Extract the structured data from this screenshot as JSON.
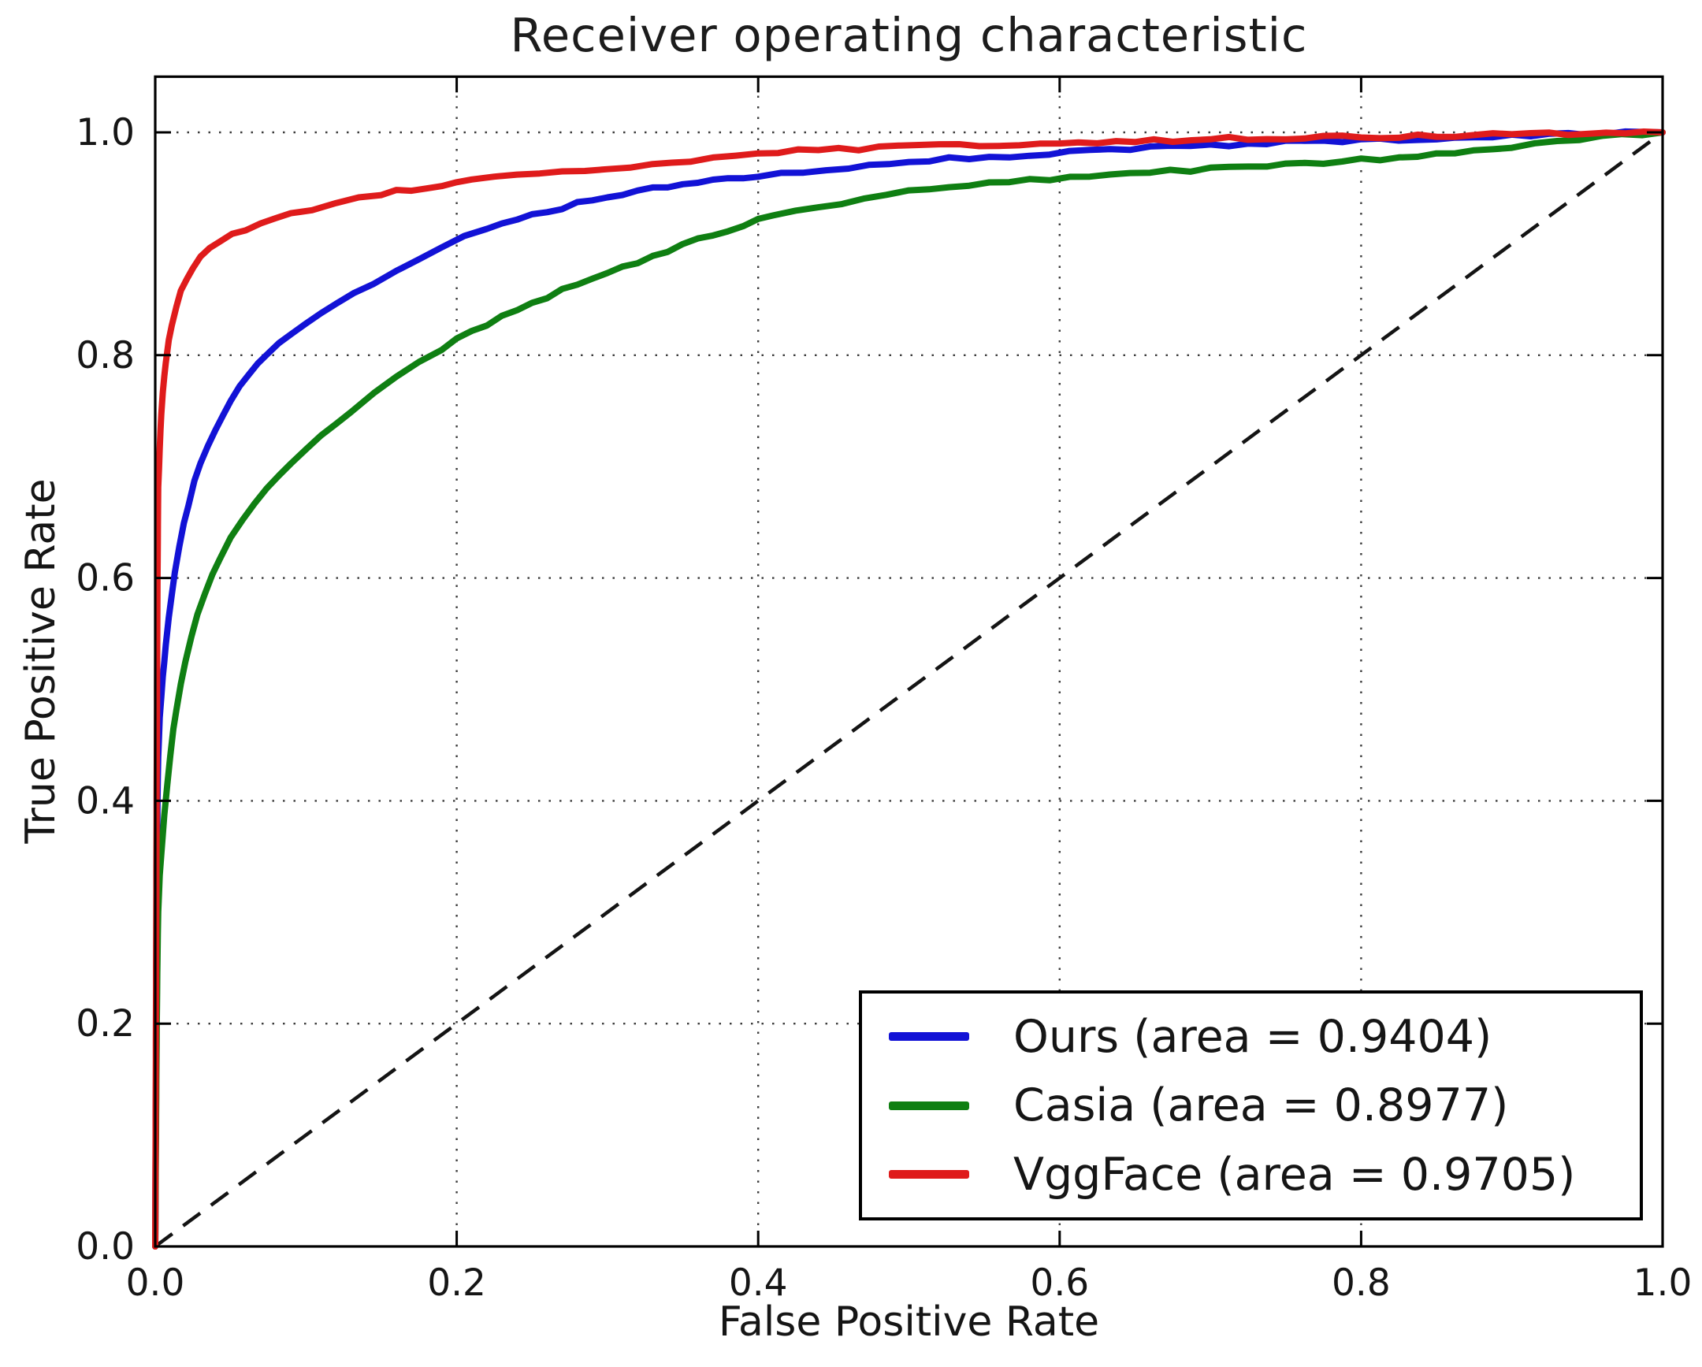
{
  "chart_data": {
    "type": "line",
    "title": "Receiver operating characteristic",
    "xlabel": "False Positive Rate",
    "ylabel": "True Positive Rate",
    "xlim": [
      0.0,
      1.0
    ],
    "ylim": [
      0.0,
      1.05
    ],
    "grid": "dotted",
    "grid_color": "#3c3c3c",
    "axis_color": "#000000",
    "background": "#ffffff",
    "legend_position": "lower right",
    "xticks": [
      {
        "v": 0.0,
        "label": "0.0"
      },
      {
        "v": 0.2,
        "label": "0.2"
      },
      {
        "v": 0.4,
        "label": "0.4"
      },
      {
        "v": 0.6,
        "label": "0.6"
      },
      {
        "v": 0.8,
        "label": "0.8"
      },
      {
        "v": 1.0,
        "label": "1.0"
      }
    ],
    "yticks": [
      {
        "v": 0.0,
        "label": "0.0"
      },
      {
        "v": 0.2,
        "label": "0.2"
      },
      {
        "v": 0.4,
        "label": "0.4"
      },
      {
        "v": 0.6,
        "label": "0.6"
      },
      {
        "v": 0.8,
        "label": "0.8"
      },
      {
        "v": 1.0,
        "label": "1.0"
      }
    ],
    "reference_line": {
      "style": "dashed",
      "color": "#141414",
      "from": [
        0,
        0
      ],
      "to": [
        1,
        1
      ]
    },
    "series": [
      {
        "name": "Ours",
        "label": "Ours (area = 0.9404)",
        "auc": 0.9404,
        "color": "#1212d6",
        "points": [
          [
            0,
            0
          ],
          [
            0.001,
            0.3
          ],
          [
            0.0015,
            0.4
          ],
          [
            0.002,
            0.44
          ],
          [
            0.003,
            0.476
          ],
          [
            0.005,
            0.511
          ],
          [
            0.007,
            0.541
          ],
          [
            0.009,
            0.566
          ],
          [
            0.011,
            0.586
          ],
          [
            0.013,
            0.606
          ],
          [
            0.016,
            0.629
          ],
          [
            0.019,
            0.648
          ],
          [
            0.022,
            0.666
          ],
          [
            0.026,
            0.686
          ],
          [
            0.03,
            0.702
          ],
          [
            0.035,
            0.719
          ],
          [
            0.04,
            0.733
          ],
          [
            0.045,
            0.746
          ],
          [
            0.05,
            0.758
          ],
          [
            0.056,
            0.772
          ],
          [
            0.062,
            0.782
          ],
          [
            0.068,
            0.792
          ],
          [
            0.075,
            0.801
          ],
          [
            0.082,
            0.81
          ],
          [
            0.09,
            0.818
          ],
          [
            0.1,
            0.828
          ],
          [
            0.11,
            0.838
          ],
          [
            0.12,
            0.846
          ],
          [
            0.132,
            0.855
          ],
          [
            0.145,
            0.865
          ],
          [
            0.16,
            0.875
          ],
          [
            0.175,
            0.885
          ],
          [
            0.19,
            0.896
          ],
          [
            0.205,
            0.906
          ],
          [
            0.22,
            0.914
          ],
          [
            0.24,
            0.922
          ],
          [
            0.26,
            0.929
          ],
          [
            0.28,
            0.936
          ],
          [
            0.3,
            0.942
          ],
          [
            0.32,
            0.947
          ],
          [
            0.34,
            0.951
          ],
          [
            0.36,
            0.955
          ],
          [
            0.38,
            0.958
          ],
          [
            0.4,
            0.961
          ],
          [
            0.43,
            0.965
          ],
          [
            0.46,
            0.969
          ],
          [
            0.5,
            0.974
          ],
          [
            0.54,
            0.977
          ],
          [
            0.58,
            0.98
          ],
          [
            0.62,
            0.983
          ],
          [
            0.66,
            0.986
          ],
          [
            0.7,
            0.988
          ],
          [
            0.75,
            0.991
          ],
          [
            0.8,
            0.993
          ],
          [
            0.85,
            0.995
          ],
          [
            0.9,
            0.997
          ],
          [
            0.95,
            0.999
          ],
          [
            1,
            1
          ]
        ]
      },
      {
        "name": "Casia",
        "label": "Casia (area = 0.8977)",
        "auc": 0.8977,
        "color": "#0f7f12",
        "points": [
          [
            0,
            0
          ],
          [
            0.001,
            0.2
          ],
          [
            0.0015,
            0.26
          ],
          [
            0.002,
            0.3
          ],
          [
            0.003,
            0.332
          ],
          [
            0.004,
            0.352
          ],
          [
            0.006,
            0.386
          ],
          [
            0.008,
            0.416
          ],
          [
            0.01,
            0.441
          ],
          [
            0.012,
            0.463
          ],
          [
            0.014,
            0.481
          ],
          [
            0.017,
            0.504
          ],
          [
            0.02,
            0.524
          ],
          [
            0.024,
            0.546
          ],
          [
            0.028,
            0.566
          ],
          [
            0.033,
            0.586
          ],
          [
            0.038,
            0.603
          ],
          [
            0.043,
            0.618
          ],
          [
            0.05,
            0.636
          ],
          [
            0.058,
            0.653
          ],
          [
            0.066,
            0.667
          ],
          [
            0.074,
            0.68
          ],
          [
            0.082,
            0.692
          ],
          [
            0.09,
            0.704
          ],
          [
            0.1,
            0.716
          ],
          [
            0.11,
            0.727
          ],
          [
            0.12,
            0.738
          ],
          [
            0.13,
            0.75
          ],
          [
            0.145,
            0.765
          ],
          [
            0.16,
            0.78
          ],
          [
            0.175,
            0.793
          ],
          [
            0.19,
            0.806
          ],
          [
            0.21,
            0.821
          ],
          [
            0.23,
            0.834
          ],
          [
            0.25,
            0.846
          ],
          [
            0.27,
            0.858
          ],
          [
            0.29,
            0.869
          ],
          [
            0.31,
            0.879
          ],
          [
            0.33,
            0.889
          ],
          [
            0.35,
            0.899
          ],
          [
            0.37,
            0.908
          ],
          [
            0.39,
            0.917
          ],
          [
            0.41,
            0.925
          ],
          [
            0.44,
            0.933
          ],
          [
            0.47,
            0.941
          ],
          [
            0.5,
            0.947
          ],
          [
            0.54,
            0.952
          ],
          [
            0.58,
            0.957
          ],
          [
            0.62,
            0.961
          ],
          [
            0.66,
            0.964
          ],
          [
            0.7,
            0.967
          ],
          [
            0.75,
            0.971
          ],
          [
            0.8,
            0.975
          ],
          [
            0.85,
            0.981
          ],
          [
            0.9,
            0.987
          ],
          [
            0.93,
            0.991
          ],
          [
            0.96,
            0.996
          ],
          [
            1,
            1
          ]
        ]
      },
      {
        "name": "VggFace",
        "label": "VggFace (area = 0.9705)",
        "auc": 0.9705,
        "color": "#df1b1b",
        "points": [
          [
            0,
            0
          ],
          [
            0.001,
            0.42
          ],
          [
            0.0015,
            0.6
          ],
          [
            0.002,
            0.68
          ],
          [
            0.003,
            0.717
          ],
          [
            0.004,
            0.746
          ],
          [
            0.005,
            0.768
          ],
          [
            0.007,
            0.794
          ],
          [
            0.009,
            0.813
          ],
          [
            0.011,
            0.828
          ],
          [
            0.014,
            0.844
          ],
          [
            0.017,
            0.857
          ],
          [
            0.021,
            0.869
          ],
          [
            0.025,
            0.878
          ],
          [
            0.03,
            0.887
          ],
          [
            0.036,
            0.895
          ],
          [
            0.043,
            0.902
          ],
          [
            0.051,
            0.908
          ],
          [
            0.06,
            0.913
          ],
          [
            0.07,
            0.917
          ],
          [
            0.08,
            0.922
          ],
          [
            0.09,
            0.926
          ],
          [
            0.104,
            0.931
          ],
          [
            0.12,
            0.936
          ],
          [
            0.135,
            0.941
          ],
          [
            0.15,
            0.945
          ],
          [
            0.17,
            0.949
          ],
          [
            0.19,
            0.953
          ],
          [
            0.21,
            0.957
          ],
          [
            0.24,
            0.961
          ],
          [
            0.27,
            0.964
          ],
          [
            0.3,
            0.967
          ],
          [
            0.33,
            0.97
          ],
          [
            0.355,
            0.974
          ],
          [
            0.37,
            0.979
          ],
          [
            0.4,
            0.982
          ],
          [
            0.44,
            0.984
          ],
          [
            0.48,
            0.986
          ],
          [
            0.52,
            0.988
          ],
          [
            0.56,
            0.989
          ],
          [
            0.6,
            0.991
          ],
          [
            0.65,
            0.992
          ],
          [
            0.7,
            0.994
          ],
          [
            0.75,
            0.995
          ],
          [
            0.8,
            0.996
          ],
          [
            0.85,
            0.997
          ],
          [
            0.9,
            0.998
          ],
          [
            0.95,
            0.999
          ],
          [
            1,
            1
          ]
        ]
      }
    ]
  }
}
